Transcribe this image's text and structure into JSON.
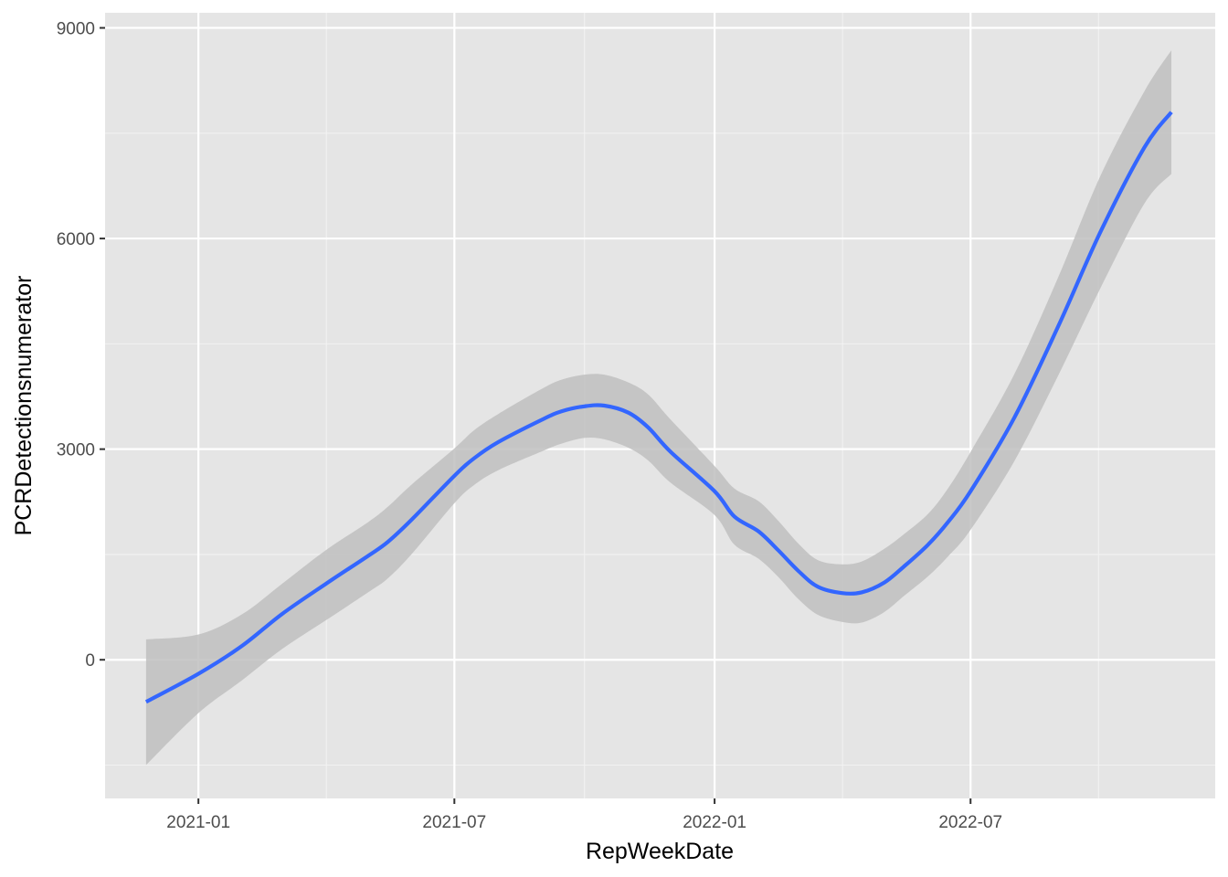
{
  "chart_data": {
    "type": "line",
    "title": "",
    "xlabel": "RepWeekDate",
    "ylabel": "PCRDetectionsnumerator",
    "x_ticks": [
      "2021-01",
      "2021-07",
      "2022-01",
      "2022-07"
    ],
    "y_ticks": [
      "0",
      "3000",
      "6000",
      "9000"
    ],
    "xlim": [
      "2020-10-27",
      "2022-12-21"
    ],
    "ylim": [
      -1975,
      9215
    ],
    "grid": true,
    "background": "#e5e5e5",
    "series": [
      {
        "type": "smooth",
        "color": "#3366ff",
        "band_color": "#bfbfbf",
        "x": [
          "2020-11-25",
          "2021-01-01",
          "2021-02-01",
          "2021-03-01",
          "2021-04-01",
          "2021-05-01",
          "2021-05-15",
          "2021-06-01",
          "2021-07-01",
          "2021-07-15",
          "2021-08-01",
          "2021-09-01",
          "2021-09-15",
          "2021-10-01",
          "2021-10-15",
          "2021-11-01",
          "2021-11-15",
          "2021-12-01",
          "2022-01-01",
          "2022-01-15",
          "2022-02-01",
          "2022-02-15",
          "2022-03-01",
          "2022-03-15",
          "2022-04-01",
          "2022-04-15",
          "2022-05-01",
          "2022-05-15",
          "2022-06-01",
          "2022-06-15",
          "2022-07-01",
          "2022-08-01",
          "2022-09-01",
          "2022-10-01",
          "2022-11-01",
          "2022-11-20"
        ],
        "y": [
          -600,
          -200,
          200,
          650,
          1080,
          1480,
          1680,
          2000,
          2620,
          2870,
          3100,
          3420,
          3540,
          3610,
          3620,
          3520,
          3310,
          2960,
          2400,
          2040,
          1830,
          1560,
          1270,
          1040,
          950,
          960,
          1100,
          1330,
          1640,
          1960,
          2400,
          3450,
          4750,
          6100,
          7300,
          7800
        ],
        "lower": [
          -1500,
          -760,
          -290,
          150,
          560,
          960,
          1160,
          1510,
          2230,
          2490,
          2700,
          2970,
          3080,
          3160,
          3140,
          3020,
          2840,
          2520,
          2060,
          1640,
          1440,
          1180,
          870,
          640,
          540,
          530,
          680,
          910,
          1190,
          1470,
          1850,
          2830,
          4050,
          5300,
          6500,
          6920
        ],
        "upper": [
          290,
          360,
          650,
          1080,
          1560,
          1960,
          2180,
          2500,
          3010,
          3270,
          3500,
          3860,
          3990,
          4060,
          4060,
          3950,
          3780,
          3420,
          2760,
          2440,
          2260,
          1980,
          1660,
          1420,
          1360,
          1400,
          1580,
          1790,
          2080,
          2440,
          2960,
          4070,
          5450,
          6900,
          8100,
          8680
        ]
      }
    ]
  }
}
